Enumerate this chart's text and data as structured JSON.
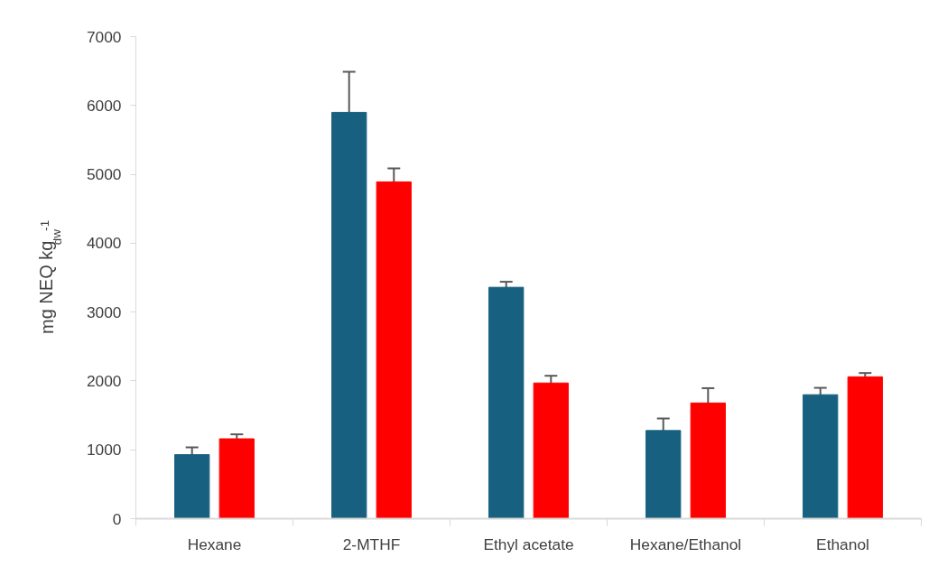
{
  "chart_data": {
    "type": "bar",
    "ylabel": "mg NEQ kg$_{dw}$$^{-1}$",
    "categories": [
      "Hexane",
      "2-MTHF",
      "Ethyl acetate",
      "Hexane/Ethanol",
      "Ethanol"
    ],
    "series": [
      {
        "color": "#17607f",
        "values": [
          930,
          5900,
          3360,
          1280,
          1800
        ],
        "errors": [
          105,
          590,
          80,
          175,
          100
        ]
      },
      {
        "color": "#ff0000",
        "values": [
          1160,
          4890,
          1970,
          1680,
          2060
        ],
        "errors": [
          65,
          195,
          105,
          215,
          55
        ]
      }
    ],
    "ylim": [
      0,
      7000
    ],
    "yticks": [
      0,
      1000,
      2000,
      3000,
      4000,
      5000,
      6000,
      7000
    ],
    "grid": false
  }
}
